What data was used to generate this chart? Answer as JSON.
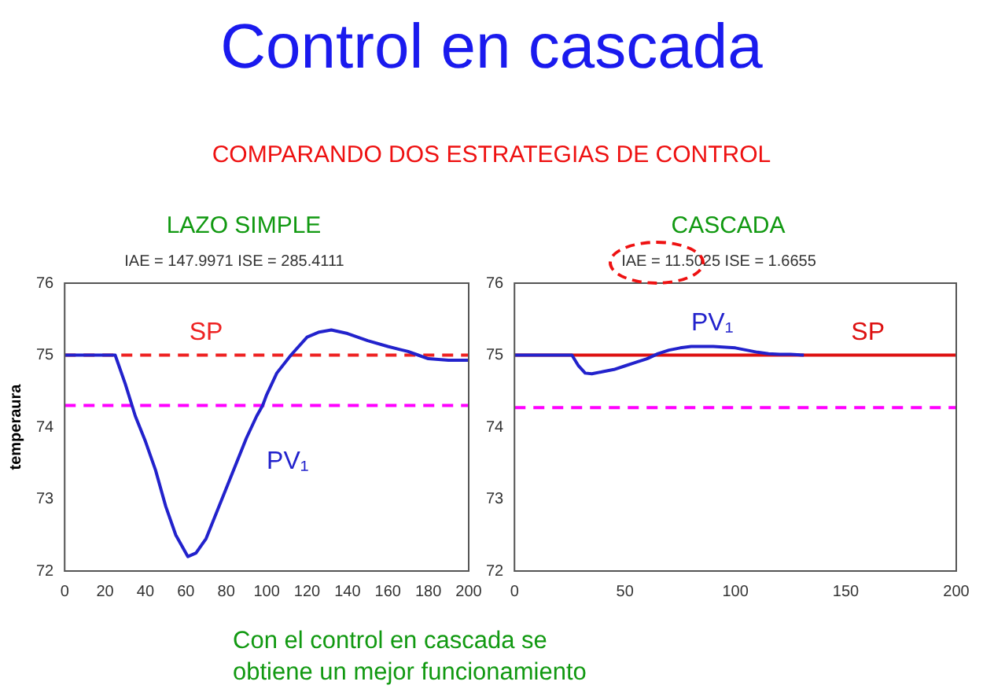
{
  "chart_data": [
    {
      "type": "line",
      "title": "LAZO SIMPLE",
      "subtitle": "IAE = 147.9971 ISE = 285.4111",
      "ylabel": "temperaura",
      "annotations": [
        "Control en cascada",
        "COMPARANDO DOS ESTRATEGIAS DE CONTROL",
        "Con el control en cascada se obtiene un mejor funcionamiento"
      ],
      "series": [
        {
          "name": "PV₁",
          "color": "#2222cc",
          "x": [
            0,
            25,
            30,
            35,
            40,
            45,
            50,
            55,
            61,
            65,
            70,
            75,
            80,
            85,
            90,
            95,
            98,
            100,
            105,
            112,
            120,
            126,
            132,
            140,
            150,
            160,
            170,
            175,
            180,
            190,
            200
          ],
          "values": [
            75,
            75,
            74.6,
            74.15,
            73.8,
            73.4,
            72.9,
            72.5,
            72.2,
            72.25,
            72.45,
            72.8,
            73.15,
            73.5,
            73.85,
            74.15,
            74.3,
            74.45,
            74.75,
            75,
            75.25,
            75.32,
            75.35,
            75.3,
            75.2,
            75.12,
            75.05,
            75,
            74.95,
            74.93,
            74.93
          ]
        }
      ],
      "ref_lines": [
        {
          "axis": "y",
          "value": 75,
          "label": "SP",
          "color": "#ee2222",
          "line_style": "dashed"
        },
        {
          "axis": "y",
          "value": 74.3,
          "label": null,
          "color": "#ff00ff",
          "line_style": "dashed"
        }
      ],
      "xlim": [
        0,
        200
      ],
      "xticks": [
        0,
        20,
        40,
        60,
        80,
        100,
        120,
        140,
        160,
        180,
        200
      ],
      "ylim": [
        72,
        76
      ],
      "yticks": [
        72,
        73,
        74,
        75,
        76
      ],
      "grid": false,
      "legend": false
    },
    {
      "type": "line",
      "title": "CASCADA",
      "subtitle": "IAE = 11.5025 ISE = 1.6655",
      "series": [
        {
          "name": "PV₁",
          "color": "#2222cc",
          "x": [
            0,
            26,
            29,
            32,
            35,
            40,
            45,
            50,
            55,
            60,
            65,
            70,
            75,
            80,
            90,
            100,
            105,
            110,
            115,
            120,
            125,
            131
          ],
          "values": [
            75,
            75,
            74.85,
            74.75,
            74.74,
            74.77,
            74.8,
            74.85,
            74.9,
            74.95,
            75.02,
            75.07,
            75.1,
            75.12,
            75.12,
            75.1,
            75.07,
            75.04,
            75.02,
            75.01,
            75.01,
            75
          ]
        }
      ],
      "ref_lines": [
        {
          "axis": "y",
          "value": 75,
          "label": "SP",
          "color": "#dd1111",
          "line_style": "solid"
        },
        {
          "axis": "y",
          "value": 74.27,
          "label": null,
          "color": "#ff00ff",
          "line_style": "dashed"
        }
      ],
      "xlim": [
        0,
        200
      ],
      "xticks": [
        0,
        50,
        100,
        150,
        200
      ],
      "ylim": [
        72,
        76
      ],
      "yticks": [
        72,
        73,
        74,
        75,
        76
      ],
      "grid": false,
      "legend": false
    }
  ]
}
